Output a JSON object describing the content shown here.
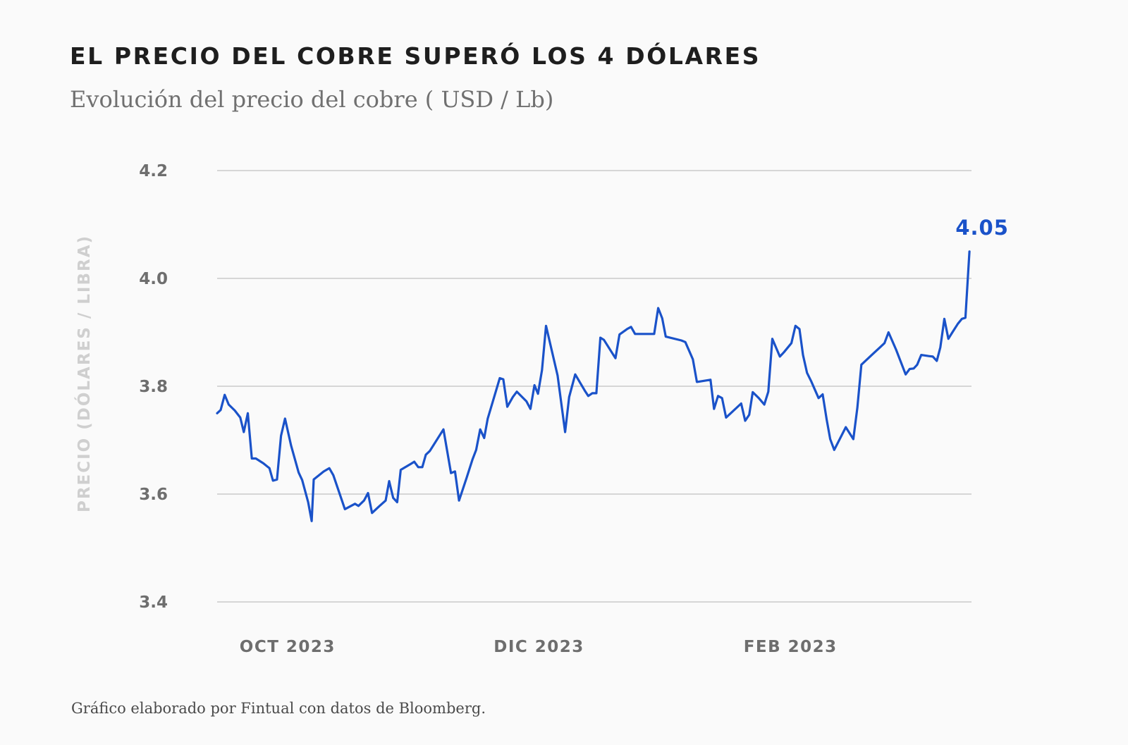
{
  "title": "EL PRECIO DEL COBRE SUPERÓ LOS 4 DÓLARES",
  "subtitle": "Evolución del precio del cobre ( USD / Lb)",
  "source": "Gráfico elaborado por Fintual con datos de Bloomberg.",
  "colors": {
    "line": "#1a52c9",
    "grid": "#c9c9c9",
    "ticks": "#6e6e6e",
    "ylabel": "#cfcfcf"
  },
  "chart_data": {
    "type": "line",
    "title": "EL PRECIO DEL COBRE SUPERÓ LOS 4 DÓLARES",
    "subtitle": "Evolución del precio del cobre ( USD / Lb)",
    "ylabel": "PRECIO (DÓLARES / LIBRA)",
    "ylim": [
      3.4,
      4.2
    ],
    "yticks": [
      {
        "value": 4.2,
        "label": "4.2"
      },
      {
        "value": 4.0,
        "label": "4.0"
      },
      {
        "value": 3.8,
        "label": "3.8"
      },
      {
        "value": 3.6,
        "label": "3.6"
      },
      {
        "value": 3.4,
        "label": "3.4"
      }
    ],
    "xlim": [
      0,
      150
    ],
    "xticks": [
      {
        "value": 14,
        "label": "OCT 2023"
      },
      {
        "value": 64,
        "label": "DIC 2023"
      },
      {
        "value": 114,
        "label": "FEB 2023"
      }
    ],
    "grid": true,
    "end_label": "4.05",
    "series": [
      {
        "values": [
          [
            0,
            3.75
          ],
          [
            0.7,
            3.756
          ],
          [
            1.5,
            3.784
          ],
          [
            2.3,
            3.766
          ],
          [
            3.5,
            3.755
          ],
          [
            4.6,
            3.742
          ],
          [
            5.3,
            3.715
          ],
          [
            6.1,
            3.75
          ],
          [
            6.9,
            3.666
          ],
          [
            7.7,
            3.666
          ],
          [
            9.2,
            3.657
          ],
          [
            10.4,
            3.648
          ],
          [
            11.1,
            3.625
          ],
          [
            11.9,
            3.627
          ],
          [
            12.7,
            3.708
          ],
          [
            13.5,
            3.74
          ],
          [
            14.7,
            3.69
          ],
          [
            16.2,
            3.64
          ],
          [
            16.9,
            3.626
          ],
          [
            18.1,
            3.585
          ],
          [
            18.8,
            3.55
          ],
          [
            19.2,
            3.627
          ],
          [
            21.2,
            3.642
          ],
          [
            22.3,
            3.648
          ],
          [
            23.1,
            3.635
          ],
          [
            25.4,
            3.572
          ],
          [
            27.4,
            3.582
          ],
          [
            28.1,
            3.578
          ],
          [
            29.2,
            3.588
          ],
          [
            30,
            3.602
          ],
          [
            30.8,
            3.565
          ],
          [
            32.3,
            3.578
          ],
          [
            33.5,
            3.588
          ],
          [
            34.2,
            3.624
          ],
          [
            35,
            3.593
          ],
          [
            35.8,
            3.585
          ],
          [
            36.5,
            3.645
          ],
          [
            38.5,
            3.656
          ],
          [
            39.2,
            3.66
          ],
          [
            40,
            3.65
          ],
          [
            40.8,
            3.65
          ],
          [
            41.5,
            3.673
          ],
          [
            42.3,
            3.68
          ],
          [
            45,
            3.72
          ],
          [
            46.5,
            3.639
          ],
          [
            47.3,
            3.642
          ],
          [
            48.1,
            3.588
          ],
          [
            49.6,
            3.63
          ],
          [
            50.8,
            3.665
          ],
          [
            51.5,
            3.682
          ],
          [
            52.3,
            3.72
          ],
          [
            53.1,
            3.704
          ],
          [
            53.8,
            3.74
          ],
          [
            56.2,
            3.815
          ],
          [
            56.9,
            3.813
          ],
          [
            57.7,
            3.762
          ],
          [
            58.8,
            3.78
          ],
          [
            59.6,
            3.79
          ],
          [
            61.5,
            3.772
          ],
          [
            62.3,
            3.758
          ],
          [
            63.1,
            3.802
          ],
          [
            63.8,
            3.786
          ],
          [
            64.6,
            3.83
          ],
          [
            65.4,
            3.912
          ],
          [
            67.7,
            3.82
          ],
          [
            69.2,
            3.715
          ],
          [
            70,
            3.78
          ],
          [
            71.2,
            3.822
          ],
          [
            73.1,
            3.792
          ],
          [
            73.8,
            3.782
          ],
          [
            74.6,
            3.787
          ],
          [
            75.4,
            3.787
          ],
          [
            76.2,
            3.89
          ],
          [
            76.9,
            3.886
          ],
          [
            79.2,
            3.852
          ],
          [
            80,
            3.896
          ],
          [
            81.5,
            3.906
          ],
          [
            82.3,
            3.91
          ],
          [
            83.1,
            3.897
          ],
          [
            86.9,
            3.897
          ],
          [
            87.7,
            3.945
          ],
          [
            88.5,
            3.926
          ],
          [
            89.2,
            3.892
          ],
          [
            92.3,
            3.885
          ],
          [
            93.1,
            3.882
          ],
          [
            94.6,
            3.85
          ],
          [
            95.4,
            3.808
          ],
          [
            98.1,
            3.812
          ],
          [
            98.8,
            3.758
          ],
          [
            99.6,
            3.782
          ],
          [
            100.4,
            3.778
          ],
          [
            101.2,
            3.742
          ],
          [
            104.2,
            3.768
          ],
          [
            105,
            3.736
          ],
          [
            105.8,
            3.747
          ],
          [
            106.5,
            3.789
          ],
          [
            107.7,
            3.778
          ],
          [
            108.8,
            3.766
          ],
          [
            109.6,
            3.79
          ],
          [
            110.4,
            3.888
          ],
          [
            111.9,
            3.855
          ],
          [
            112.7,
            3.863
          ],
          [
            114.2,
            3.88
          ],
          [
            115,
            3.912
          ],
          [
            115.8,
            3.906
          ],
          [
            116.5,
            3.858
          ],
          [
            117.3,
            3.825
          ],
          [
            118.1,
            3.81
          ],
          [
            118.8,
            3.795
          ],
          [
            119.6,
            3.778
          ],
          [
            120.4,
            3.785
          ],
          [
            121.2,
            3.738
          ],
          [
            121.9,
            3.702
          ],
          [
            122.7,
            3.682
          ],
          [
            125,
            3.724
          ],
          [
            126.5,
            3.702
          ],
          [
            127.3,
            3.76
          ],
          [
            128.1,
            3.84
          ],
          [
            130.4,
            3.86
          ],
          [
            131.9,
            3.873
          ],
          [
            132.7,
            3.88
          ],
          [
            133.5,
            3.9
          ],
          [
            135,
            3.868
          ],
          [
            136.9,
            3.822
          ],
          [
            137.7,
            3.832
          ],
          [
            138.5,
            3.833
          ],
          [
            139.2,
            3.84
          ],
          [
            140,
            3.858
          ],
          [
            141.5,
            3.856
          ],
          [
            142.3,
            3.855
          ],
          [
            143.1,
            3.847
          ],
          [
            143.8,
            3.872
          ],
          [
            144.6,
            3.925
          ],
          [
            145.4,
            3.888
          ],
          [
            146.2,
            3.9
          ],
          [
            147.3,
            3.916
          ],
          [
            148.1,
            3.925
          ],
          [
            148.8,
            3.927
          ],
          [
            149.6,
            4.05
          ]
        ]
      }
    ]
  }
}
